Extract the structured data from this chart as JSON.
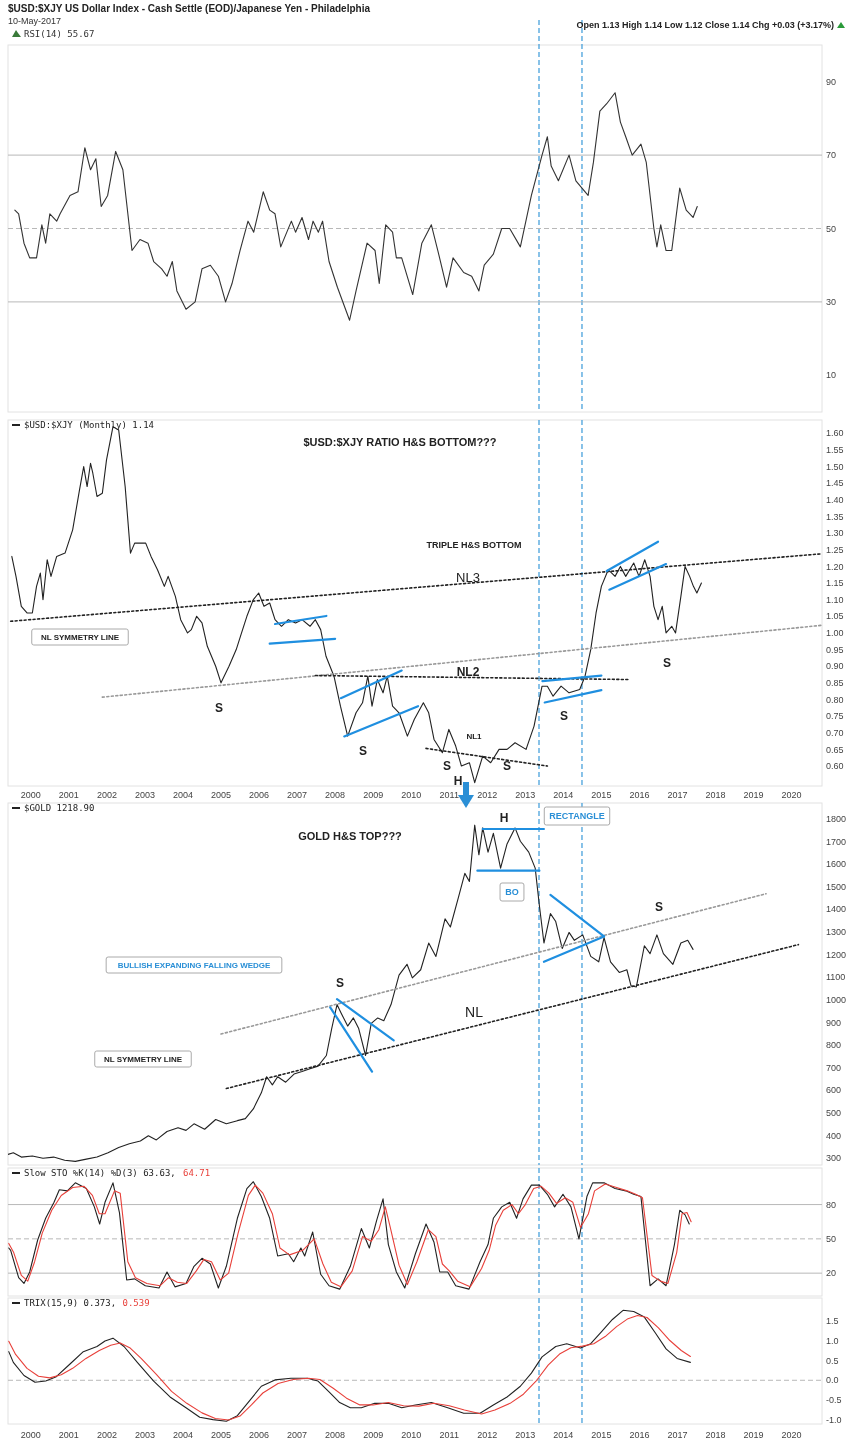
{
  "chart_data": [
    {
      "type": "line",
      "title": "$USD:$XJY US Dollar Index - Cash Settle (EOD)/Japanese Yen - Philadelphia",
      "subtitle": "10-May-2017",
      "annotations": [
        "Open 1.13 High 1.14 Low 1.12 Close 1.14 Chg +0.03 (+3.17%)"
      ],
      "legend": "top left",
      "tick_labels": "y",
      "xlim": [
        1999.4,
        2020.8
      ],
      "xticks": [
        2000,
        2001,
        2002,
        2003,
        2004,
        2005,
        2006,
        2007,
        2008,
        2009,
        2010,
        2011,
        2012,
        2013,
        2014,
        2015,
        2016,
        2017,
        2018,
        2019,
        2020
      ],
      "ylim": [
        0,
        100
      ],
      "yticks": [
        10,
        30,
        50,
        70,
        90
      ],
      "ref_lines": [
        {
          "axis": "x",
          "value": 2013.36,
          "color": "#3a9ad9",
          "line_style": "dashed"
        },
        {
          "axis": "x",
          "value": 2014.49,
          "color": "#3a9ad9",
          "line_style": "dashed"
        },
        {
          "axis": "y",
          "value": 70,
          "color": "#b8b8b8",
          "line_style": "solid"
        },
        {
          "axis": "y",
          "value": 50,
          "color": "#b8b8b8",
          "line_style": "dashed"
        },
        {
          "axis": "y",
          "value": 30,
          "color": "#b8b8b8",
          "line_style": "solid"
        }
      ],
      "series": [
        {
          "name": "RSI(14) 55.67",
          "color": "#333333",
          "x": [
            1999.58,
            1999.68,
            1999.82,
            1999.97,
            2000.15,
            2000.29,
            2000.39,
            2000.5,
            2000.68,
            2000.77,
            2001.03,
            2001.24,
            2001.42,
            2001.57,
            2001.71,
            2001.85,
            2002.02,
            2002.23,
            2002.42,
            2002.66,
            2002.87,
            2003.08,
            2003.23,
            2003.44,
            2003.58,
            2003.72,
            2003.84,
            2004.08,
            2004.32,
            2004.5,
            2004.72,
            2004.93,
            2005.12,
            2005.29,
            2005.5,
            2005.71,
            2005.86,
            2006.11,
            2006.28,
            2006.42,
            2006.57,
            2006.85,
            2006.96,
            2007.13,
            2007.3,
            2007.42,
            2007.56,
            2007.67,
            2007.84,
            2008.06,
            2008.38,
            2008.55,
            2008.84,
            2009.05,
            2009.16,
            2009.33,
            2009.51,
            2009.61,
            2009.75,
            2010.04,
            2010.28,
            2010.53,
            2010.7,
            2010.93,
            2011.1,
            2011.38,
            2011.59,
            2011.78,
            2011.92,
            2012.16,
            2012.38,
            2012.59,
            2012.87,
            2013.16,
            2013.44,
            2013.58,
            2013.68,
            2013.87,
            2014.15,
            2014.33,
            2014.65,
            2014.79,
            2014.96,
            2015.14,
            2015.36,
            2015.5,
            2015.64,
            2015.81,
            2016.04,
            2016.18,
            2016.38,
            2016.46,
            2016.56,
            2016.7,
            2016.85,
            2017.06,
            2017.23,
            2017.41,
            2017.52
          ],
          "values": [
            55,
            54,
            46,
            42,
            42,
            51,
            46,
            54,
            52,
            54,
            59,
            60,
            72,
            66,
            69,
            56,
            59,
            71,
            66,
            44,
            47,
            46,
            41,
            39,
            37,
            41,
            33,
            28,
            30,
            39,
            40,
            37,
            30,
            35,
            44,
            52,
            49,
            60,
            55,
            54,
            45,
            52,
            49,
            53,
            47,
            52,
            49,
            52,
            41,
            34,
            25,
            33,
            46,
            44,
            35,
            51,
            49,
            42,
            42,
            32,
            46,
            51,
            44,
            34,
            42,
            38,
            37,
            33,
            40,
            43,
            50,
            50,
            45,
            59,
            70,
            75,
            67,
            63,
            70,
            63,
            59,
            68,
            82,
            84,
            87,
            79,
            75,
            70,
            73,
            68,
            50,
            45,
            51,
            44,
            44,
            61,
            55,
            53,
            56
          ]
        }
      ]
    },
    {
      "type": "line",
      "title": "$USD:$XJY RATIO H&S BOTTOM???",
      "legend": "top left",
      "xlim": [
        1999.4,
        2020.8
      ],
      "xticks": [
        2000,
        2001,
        2002,
        2003,
        2004,
        2005,
        2006,
        2007,
        2008,
        2009,
        2010,
        2011,
        2012,
        2013,
        2014,
        2015,
        2016,
        2017,
        2018,
        2019,
        2020
      ],
      "ylim": [
        0.54,
        1.64
      ],
      "yticks": [
        {
          "value": 1.6,
          "label": "1.60"
        },
        {
          "value": 1.55,
          "label": "1.55"
        },
        {
          "value": 1.5,
          "label": "1.50"
        },
        {
          "value": 1.45,
          "label": "1.45"
        },
        {
          "value": 1.4,
          "label": "1.40"
        },
        {
          "value": 1.35,
          "label": "1.35"
        },
        {
          "value": 1.3,
          "label": "1.30"
        },
        {
          "value": 1.25,
          "label": "1.25"
        },
        {
          "value": 1.2,
          "label": "1.20"
        },
        {
          "value": 1.15,
          "label": "1.15"
        },
        {
          "value": 1.1,
          "label": "1.10"
        },
        {
          "value": 1.05,
          "label": "1.05"
        },
        {
          "value": 1,
          "label": "1.00"
        },
        {
          "value": 0.95,
          "label": "0.95"
        },
        {
          "value": 0.9,
          "label": "0.90"
        },
        {
          "value": 0.85,
          "label": "0.85"
        },
        {
          "value": 0.8,
          "label": "0.80"
        },
        {
          "value": 0.75,
          "label": "0.75"
        },
        {
          "value": 0.7,
          "label": "0.70"
        },
        {
          "value": 0.65,
          "label": "0.65"
        },
        {
          "value": 0.6,
          "label": "0.60"
        }
      ],
      "ref_lines": [
        {
          "axis": "x",
          "value": 2013.36,
          "color": "#3a9ad9",
          "line_style": "dashed"
        },
        {
          "axis": "x",
          "value": 2014.49,
          "color": "#3a9ad9",
          "line_style": "dashed"
        }
      ],
      "annotations": [
        "TRIPLE H&S BOTTOM",
        "NL3",
        "NL2",
        "NL1",
        "NL SYMMETRY LINE",
        "S",
        "S",
        "S",
        "H",
        "S",
        "S",
        "S"
      ],
      "series": [
        {
          "name": "$USD:$XJY (Monthly) 1.14",
          "color": "#222222",
          "x": [
            1999.5,
            1999.61,
            1999.75,
            1999.9,
            2000.04,
            2000.15,
            2000.25,
            2000.32,
            2000.43,
            2000.53,
            2000.68,
            2000.9,
            2001.1,
            2001.28,
            2001.39,
            2001.48,
            2001.57,
            2001.63,
            2001.74,
            2001.88,
            2001.99,
            2002.16,
            2002.31,
            2002.48,
            2002.62,
            2002.73,
            2002.9,
            2003.02,
            2003.16,
            2003.33,
            2003.51,
            2003.61,
            2003.8,
            2003.94,
            2004.12,
            2004.22,
            2004.36,
            2004.5,
            2004.64,
            2004.86,
            2005.0,
            2005.21,
            2005.4,
            2005.54,
            2005.68,
            2005.85,
            2005.99,
            2006.13,
            2006.28,
            2006.42,
            2006.59,
            2006.77,
            2006.96,
            2007.13,
            2007.34,
            2007.48,
            2007.62,
            2007.76,
            2007.97,
            2008.14,
            2008.33,
            2008.55,
            2008.72,
            2008.86,
            2008.97,
            2009.11,
            2009.26,
            2009.37,
            2009.51,
            2009.68,
            2009.9,
            2010.08,
            2010.32,
            2010.46,
            2010.6,
            2010.82,
            2010.99,
            2011.17,
            2011.32,
            2011.53,
            2011.67,
            2011.88,
            2012.09,
            2012.31,
            2012.52,
            2012.73,
            2013.02,
            2013.23,
            2013.44,
            2013.58,
            2013.73,
            2013.94,
            2014.15,
            2014.43,
            2014.57,
            2014.72,
            2014.86,
            2015.0,
            2015.18,
            2015.36,
            2015.5,
            2015.64,
            2015.85,
            2015.99,
            2016.14,
            2016.28,
            2016.38,
            2016.49,
            2016.6,
            2016.7,
            2016.85,
            2016.95,
            2017.09,
            2017.2,
            2017.32,
            2017.42,
            2017.51,
            2017.63
          ],
          "values": [
            1.23,
            1.17,
            1.08,
            1.06,
            1.06,
            1.14,
            1.18,
            1.1,
            1.22,
            1.17,
            1.23,
            1.24,
            1.31,
            1.43,
            1.5,
            1.44,
            1.51,
            1.48,
            1.41,
            1.42,
            1.52,
            1.62,
            1.61,
            1.44,
            1.24,
            1.27,
            1.27,
            1.27,
            1.23,
            1.19,
            1.14,
            1.17,
            1.11,
            1.04,
            1.0,
            1.01,
            1.05,
            1.03,
            0.96,
            0.9,
            0.85,
            0.9,
            0.95,
            1.0,
            1.05,
            1.1,
            1.12,
            1.08,
            1.09,
            1.04,
            1.02,
            1.04,
            1.03,
            1.04,
            1.02,
            1.04,
            1.01,
            0.93,
            0.87,
            0.78,
            0.69,
            0.76,
            0.79,
            0.87,
            0.78,
            0.86,
            0.82,
            0.87,
            0.78,
            0.76,
            0.69,
            0.74,
            0.79,
            0.76,
            0.68,
            0.64,
            0.71,
            0.66,
            0.6,
            0.61,
            0.55,
            0.63,
            0.61,
            0.65,
            0.65,
            0.67,
            0.65,
            0.72,
            0.84,
            0.84,
            0.81,
            0.84,
            0.82,
            0.83,
            0.87,
            0.95,
            1.06,
            1.14,
            1.19,
            1.17,
            1.2,
            1.17,
            1.21,
            1.17,
            1.22,
            1.17,
            1.08,
            1.04,
            1.08,
            1.0,
            1.02,
            1.0,
            1.11,
            1.2,
            1.17,
            1.14,
            1.12,
            1.15
          ]
        },
        {
          "color": "#222222",
          "line_style": "dotted",
          "x": [
            1999.47,
            2020.8
          ],
          "values": [
            1.035,
            1.238
          ]
        },
        {
          "color": "#999999",
          "line_style": "dotted",
          "x": [
            2001.88,
            2020.8
          ],
          "values": [
            0.807,
            1.023
          ]
        },
        {
          "color": "#222222",
          "line_style": "dotted",
          "x": [
            2007.48,
            2015.71
          ],
          "values": [
            0.872,
            0.86
          ]
        },
        {
          "color": "#222222",
          "line_style": "dotted",
          "x": [
            2010.39,
            2013.58
          ],
          "values": [
            0.653,
            0.6
          ]
        },
        {
          "color": "#1f8fe0",
          "line_style": "solid",
          "x": [
            2006.42,
            2007.77
          ],
          "values": [
            1.027,
            1.051
          ]
        },
        {
          "color": "#1f8fe0",
          "line_style": "solid",
          "x": [
            2006.28,
            2008.0
          ],
          "values": [
            0.968,
            0.982
          ]
        },
        {
          "color": "#1f8fe0",
          "line_style": "solid",
          "x": [
            2008.15,
            2009.75
          ],
          "values": [
            0.804,
            0.887
          ]
        },
        {
          "color": "#1f8fe0",
          "line_style": "solid",
          "x": [
            2008.24,
            2010.18
          ],
          "values": [
            0.689,
            0.78
          ]
        },
        {
          "color": "#1f8fe0",
          "line_style": "solid",
          "x": [
            2013.45,
            2015.0
          ],
          "values": [
            0.855,
            0.872
          ]
        },
        {
          "color": "#1f8fe0",
          "line_style": "solid",
          "x": [
            2013.51,
            2015.0
          ],
          "values": [
            0.791,
            0.828
          ]
        },
        {
          "color": "#1f8fe0",
          "line_style": "solid",
          "x": [
            2015.14,
            2016.49
          ],
          "values": [
            1.186,
            1.274
          ]
        },
        {
          "color": "#1f8fe0",
          "line_style": "solid",
          "x": [
            2015.21,
            2016.7
          ],
          "values": [
            1.13,
            1.207
          ]
        }
      ]
    },
    {
      "type": "line",
      "title": "GOLD H&S TOP???",
      "legend": "top left",
      "tick_labels": "y",
      "xlim": [
        1999.4,
        2020.8
      ],
      "xticks": [
        2000,
        2001,
        2002,
        2003,
        2004,
        2005,
        2006,
        2007,
        2008,
        2009,
        2010,
        2011,
        2012,
        2013,
        2014,
        2015,
        2016,
        2017,
        2018,
        2019,
        2020
      ],
      "ylim": [
        270,
        1870
      ],
      "yticks": [
        1800,
        1700,
        1600,
        1500,
        1400,
        1300,
        1200,
        1100,
        1000,
        900,
        800,
        700,
        600,
        500,
        400,
        300
      ],
      "ref_lines": [
        {
          "axis": "x",
          "value": 2013.36,
          "color": "#3a9ad9",
          "line_style": "dashed"
        },
        {
          "axis": "x",
          "value": 2014.49,
          "color": "#3a9ad9",
          "line_style": "dashed"
        }
      ],
      "annotations": [
        "RECTANGLE",
        "BO",
        "BULLISH EXPANDING FALLING WEDGE",
        "NL SYMMETRY LINE",
        "NL",
        "H",
        "S",
        "S"
      ],
      "series": [
        {
          "name": "$GOLD 1218.90",
          "color": "#222222",
          "x": [
            1999.4,
            1999.54,
            1999.75,
            2000.04,
            2000.32,
            2000.6,
            2000.89,
            2001.17,
            2001.46,
            2001.74,
            2002.03,
            2002.31,
            2002.59,
            2002.88,
            2003.09,
            2003.3,
            2003.58,
            2003.87,
            2004.08,
            2004.29,
            2004.57,
            2004.86,
            2005.14,
            2005.43,
            2005.64,
            2005.85,
            2006.06,
            2006.2,
            2006.35,
            2006.49,
            2006.7,
            2006.92,
            2007.13,
            2007.34,
            2007.55,
            2007.77,
            2007.91,
            2008.05,
            2008.15,
            2008.33,
            2008.48,
            2008.62,
            2008.8,
            2008.95,
            2009.12,
            2009.28,
            2009.47,
            2009.68,
            2009.89,
            2010.03,
            2010.25,
            2010.46,
            2010.65,
            2010.89,
            2011.03,
            2011.24,
            2011.41,
            2011.53,
            2011.67,
            2011.78,
            2011.88,
            2012.02,
            2012.16,
            2012.35,
            2012.52,
            2012.73,
            2012.87,
            2013.09,
            2013.26,
            2013.37,
            2013.49,
            2013.66,
            2013.8,
            2013.97,
            2014.15,
            2014.29,
            2014.51,
            2014.72,
            2014.93,
            2015.07,
            2015.24,
            2015.47,
            2015.67,
            2015.78,
            2015.92,
            2016.13,
            2016.28,
            2016.46,
            2016.63,
            2016.88,
            2017.09,
            2017.27,
            2017.41
          ],
          "values": [
            317,
            324,
            305,
            310,
            300,
            305,
            291,
            286,
            296,
            305,
            324,
            347,
            364,
            376,
            399,
            381,
            418,
            435,
            423,
            452,
            428,
            471,
            452,
            466,
            475,
            518,
            589,
            660,
            624,
            660,
            636,
            672,
            683,
            695,
            707,
            754,
            873,
            979,
            944,
            884,
            920,
            873,
            754,
            896,
            920,
            908,
            979,
            1109,
            1157,
            1097,
            1133,
            1251,
            1192,
            1358,
            1322,
            1452,
            1559,
            1523,
            1772,
            1641,
            1760,
            1653,
            1736,
            1582,
            1689,
            1760,
            1701,
            1653,
            1582,
            1417,
            1251,
            1381,
            1346,
            1227,
            1298,
            1263,
            1287,
            1192,
            1168,
            1275,
            1168,
            1121,
            1133,
            1062,
            1057,
            1239,
            1204,
            1287,
            1204,
            1157,
            1251,
            1263,
            1223
          ]
        },
        {
          "color": "#222222",
          "line_style": "dotted",
          "x": [
            2005.14,
            2020.18
          ],
          "values": [
            608,
            1244
          ]
        },
        {
          "color": "#999999",
          "line_style": "dotted",
          "x": [
            2005.0,
            2019.33
          ],
          "values": [
            849,
            1469
          ]
        },
        {
          "color": "#1f8fe0",
          "line_style": "solid",
          "x": [
            2011.88,
            2013.49
          ],
          "values": [
            1755,
            1755
          ]
        },
        {
          "color": "#1f8fe0",
          "line_style": "solid",
          "x": [
            2011.74,
            2013.37
          ],
          "values": [
            1571,
            1571
          ]
        },
        {
          "color": "#1f8fe0",
          "line_style": "solid",
          "x": [
            2013.66,
            2015.07
          ],
          "values": [
            1464,
            1280
          ]
        },
        {
          "color": "#1f8fe0",
          "line_style": "solid",
          "x": [
            2013.49,
            2015.07
          ],
          "values": [
            1168,
            1280
          ]
        },
        {
          "color": "#1f8fe0",
          "line_style": "solid",
          "x": [
            2008.05,
            2009.54
          ],
          "values": [
            1003,
            821
          ]
        },
        {
          "color": "#1f8fe0",
          "line_style": "solid",
          "x": [
            2007.87,
            2008.97
          ],
          "values": [
            967,
            683
          ]
        }
      ]
    },
    {
      "type": "line",
      "legend": "top left",
      "tick_labels": "y",
      "xlim": [
        1999.4,
        2020.8
      ],
      "xticks": [
        2000,
        2001,
        2002,
        2003,
        2004,
        2005,
        2006,
        2007,
        2008,
        2009,
        2010,
        2011,
        2012,
        2013,
        2014,
        2015,
        2016,
        2017,
        2018,
        2019,
        2020
      ],
      "ylim": [
        0,
        112
      ],
      "yticks": [
        80,
        50,
        20
      ],
      "ref_lines": [
        {
          "axis": "x",
          "value": 2013.36,
          "color": "#3a9ad9",
          "line_style": "dashed"
        },
        {
          "axis": "x",
          "value": 2014.49,
          "color": "#3a9ad9",
          "line_style": "dashed"
        },
        {
          "axis": "y",
          "value": 80,
          "color": "#b8b8b8",
          "line_style": "solid"
        },
        {
          "axis": "y",
          "value": 50,
          "color": "#b8b8b8",
          "line_style": "dashed"
        },
        {
          "axis": "y",
          "value": 20,
          "color": "#b8b8b8",
          "line_style": "solid"
        }
      ],
      "series": [
        {
          "name": "Slow STO %K(14) %D(3) 63.63,",
          "color": "#222222",
          "x": [
            1999.42,
            1999.47,
            1999.68,
            1999.82,
            1999.97,
            2000.18,
            2000.39,
            2000.61,
            2000.75,
            2000.96,
            2001.17,
            2001.46,
            2001.67,
            2001.81,
            2001.95,
            2002.16,
            2002.33,
            2002.52,
            2002.73,
            2003.01,
            2003.37,
            2003.58,
            2003.79,
            2004.08,
            2004.29,
            2004.5,
            2004.72,
            2004.93,
            2005.14,
            2005.43,
            2005.68,
            2005.85,
            2006.06,
            2006.28,
            2006.49,
            2006.77,
            2006.91,
            2007.1,
            2007.2,
            2007.41,
            2007.62,
            2007.84,
            2008.12,
            2008.4,
            2008.69,
            2008.9,
            2009.09,
            2009.26,
            2009.4,
            2009.61,
            2009.83,
            2010.11,
            2010.39,
            2010.6,
            2010.75,
            2010.96,
            2011.17,
            2011.52,
            2011.81,
            2012.02,
            2012.16,
            2012.38,
            2012.59,
            2012.77,
            2012.94,
            2013.16,
            2013.37,
            2013.58,
            2013.77,
            2013.99,
            2014.2,
            2014.41,
            2014.62,
            2014.77,
            2015.07,
            2015.36,
            2015.64,
            2015.85,
            2016.04,
            2016.28,
            2016.49,
            2016.7,
            2016.92,
            2017.06,
            2017.2,
            2017.31
          ],
          "values": [
            42,
            40,
            16,
            11,
            21,
            49,
            68,
            82,
            93,
            92,
            99,
            94,
            78,
            63,
            82,
            99,
            73,
            14,
            15,
            9,
            7,
            21,
            8,
            11,
            26,
            33,
            28,
            7,
            26,
            68,
            94,
            100,
            87,
            68,
            35,
            37,
            30,
            42,
            35,
            56,
            19,
            9,
            6,
            26,
            59,
            42,
            66,
            85,
            45,
            21,
            7,
            37,
            63,
            47,
            21,
            21,
            9,
            6,
            30,
            45,
            68,
            78,
            82,
            68,
            85,
            97,
            97,
            89,
            78,
            89,
            78,
            50,
            87,
            99,
            99,
            94,
            92,
            89,
            87,
            9,
            15,
            9,
            45,
            75,
            71,
            63
          ]
        },
        {
          "name": "64.71",
          "color": "#e8403a",
          "x": [
            1999.42,
            1999.55,
            1999.75,
            1999.92,
            2000.1,
            2000.3,
            2000.55,
            2000.8,
            2001.1,
            2001.4,
            2001.62,
            2001.8,
            2001.95,
            2002.2,
            2002.35,
            2002.55,
            2002.75,
            2003.05,
            2003.4,
            2003.62,
            2003.85,
            2004.1,
            2004.35,
            2004.55,
            2004.75,
            2004.98,
            2005.2,
            2005.45,
            2005.72,
            2005.9,
            2006.1,
            2006.35,
            2006.55,
            2006.8,
            2007.15,
            2007.45,
            2007.68,
            2007.9,
            2008.15,
            2008.45,
            2008.72,
            2008.95,
            2009.15,
            2009.32,
            2009.45,
            2009.68,
            2009.9,
            2010.15,
            2010.45,
            2010.65,
            2010.82,
            2011.0,
            2011.22,
            2011.55,
            2011.85,
            2012.05,
            2012.22,
            2012.42,
            2012.65,
            2012.82,
            2013.0,
            2013.22,
            2013.42,
            2013.62,
            2013.82,
            2014.05,
            2014.25,
            2014.45,
            2014.66,
            2014.82,
            2015.1,
            2015.4,
            2015.68,
            2015.9,
            2016.08,
            2016.33,
            2016.55,
            2016.75,
            2016.98,
            2017.12,
            2017.25,
            2017.36
          ],
          "values": [
            46,
            38,
            18,
            13,
            30,
            55,
            75,
            88,
            95,
            96,
            88,
            72,
            72,
            92,
            90,
            30,
            16,
            11,
            9,
            16,
            12,
            11,
            22,
            32,
            30,
            14,
            20,
            55,
            88,
            97,
            90,
            72,
            42,
            36,
            40,
            50,
            28,
            12,
            8,
            22,
            52,
            48,
            58,
            78,
            60,
            27,
            10,
            30,
            58,
            52,
            28,
            22,
            13,
            8,
            24,
            40,
            62,
            75,
            80,
            72,
            80,
            94,
            96,
            90,
            81,
            86,
            82,
            60,
            72,
            92,
            98,
            95,
            92,
            89,
            86,
            18,
            13,
            11,
            38,
            72,
            73,
            65
          ]
        }
      ]
    },
    {
      "type": "line",
      "legend": "top left",
      "xlim": [
        1999.4,
        2020.8
      ],
      "xticks": [
        2000,
        2001,
        2002,
        2003,
        2004,
        2005,
        2006,
        2007,
        2008,
        2009,
        2010,
        2011,
        2012,
        2013,
        2014,
        2015,
        2016,
        2017,
        2018,
        2019,
        2020
      ],
      "ylim": [
        -1.1,
        2.07
      ],
      "yticks": [
        1.5,
        {
          "value": 1,
          "label": "1.0"
        },
        0.5,
        {
          "value": 0,
          "label": "0.0"
        },
        -0.5,
        {
          "value": -1,
          "label": "-1.0"
        }
      ],
      "ref_lines": [
        {
          "axis": "x",
          "value": 2013.36,
          "color": "#3a9ad9",
          "line_style": "dashed"
        },
        {
          "axis": "x",
          "value": 2014.49,
          "color": "#3a9ad9",
          "line_style": "dashed"
        },
        {
          "axis": "y",
          "value": 0,
          "color": "#b8b8b8",
          "line_style": "dashed"
        }
      ],
      "series": [
        {
          "name": "TRIX(15,9) 0.373,",
          "color": "#222222",
          "x": [
            1999.42,
            1999.54,
            1999.82,
            2000.11,
            2000.39,
            2000.67,
            2001.03,
            2001.38,
            2001.74,
            2001.95,
            2002.16,
            2002.45,
            2002.8,
            2003.23,
            2003.66,
            2004.08,
            2004.44,
            2004.79,
            2005.14,
            2005.43,
            2005.71,
            2006.06,
            2006.42,
            2006.84,
            2007.27,
            2007.55,
            2007.84,
            2008.12,
            2008.4,
            2008.69,
            2009.04,
            2009.4,
            2009.75,
            2010.11,
            2010.53,
            2010.96,
            2011.38,
            2011.81,
            2012.16,
            2012.52,
            2012.87,
            2013.16,
            2013.44,
            2013.8,
            2014.09,
            2014.45,
            2014.72,
            2015.0,
            2015.29,
            2015.57,
            2015.85,
            2016.13,
            2016.42,
            2016.7,
            2016.99,
            2017.34
          ],
          "values": [
            0.72,
            0.45,
            0.12,
            -0.05,
            -0.02,
            0.09,
            0.41,
            0.72,
            0.85,
            0.99,
            1.06,
            0.85,
            0.45,
            -0.02,
            -0.42,
            -0.69,
            -0.93,
            -0.99,
            -1.03,
            -0.89,
            -0.56,
            -0.15,
            0.01,
            0.05,
            0.05,
            -0.02,
            -0.29,
            -0.56,
            -0.69,
            -0.69,
            -0.58,
            -0.58,
            -0.69,
            -0.62,
            -0.56,
            -0.69,
            -0.83,
            -0.83,
            -0.62,
            -0.42,
            -0.15,
            0.18,
            0.59,
            0.85,
            0.92,
            0.81,
            0.92,
            1.22,
            1.53,
            1.76,
            1.73,
            1.59,
            1.19,
            0.79,
            0.55,
            0.45
          ]
        },
        {
          "name": "0.539",
          "color": "#e8403a",
          "x": [
            1999.42,
            1999.6,
            1999.9,
            2000.2,
            2000.5,
            2000.8,
            2001.1,
            2001.45,
            2001.8,
            2002.1,
            2002.35,
            2002.6,
            2002.9,
            2003.3,
            2003.7,
            2004.1,
            2004.5,
            2004.85,
            2005.2,
            2005.5,
            2005.8,
            2006.1,
            2006.5,
            2006.9,
            2007.3,
            2007.6,
            2007.95,
            2008.3,
            2008.65,
            2009.0,
            2009.4,
            2009.8,
            2010.2,
            2010.6,
            2011.0,
            2011.4,
            2011.85,
            2012.2,
            2012.6,
            2012.95,
            2013.3,
            2013.6,
            2013.9,
            2014.2,
            2014.5,
            2014.8,
            2015.1,
            2015.4,
            2015.7,
            2015.95,
            2016.2,
            2016.5,
            2016.8,
            2017.1,
            2017.34
          ],
          "values": [
            0.98,
            0.65,
            0.3,
            0.1,
            0.06,
            0.14,
            0.3,
            0.55,
            0.75,
            0.88,
            0.94,
            0.82,
            0.55,
            0.15,
            -0.28,
            -0.58,
            -0.82,
            -0.96,
            -1.0,
            -0.9,
            -0.62,
            -0.32,
            -0.08,
            0.02,
            0.05,
            0.02,
            -0.2,
            -0.45,
            -0.62,
            -0.62,
            -0.56,
            -0.64,
            -0.65,
            -0.58,
            -0.64,
            -0.75,
            -0.85,
            -0.75,
            -0.58,
            -0.35,
            0.0,
            0.38,
            0.66,
            0.82,
            0.86,
            0.92,
            1.1,
            1.35,
            1.55,
            1.63,
            1.58,
            1.32,
            1.0,
            0.75,
            0.6
          ]
        }
      ]
    }
  ]
}
